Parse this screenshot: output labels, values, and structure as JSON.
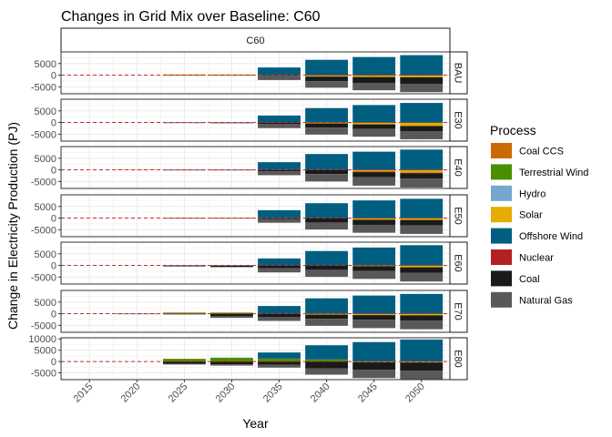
{
  "chart_data": {
    "type": "bar",
    "stacked": true,
    "faceted": true,
    "title": "Changes in Grid Mix over Baseline: C60",
    "xlabel": "Year",
    "ylabel": "Change in Electricity Production (PJ)",
    "column_strip": "C60",
    "legend_title": "Process",
    "legend_position": "right",
    "grid": true,
    "reference_line": {
      "y": 0,
      "color": "#cc2a2a",
      "style": "dashed"
    },
    "categories": [
      "2015",
      "2020",
      "2025",
      "2030",
      "2035",
      "2040",
      "2045",
      "2050"
    ],
    "processes": [
      {
        "name": "Coal CCS",
        "color": "#cc6a00"
      },
      {
        "name": "Terrestrial Wind",
        "color": "#4b8f00"
      },
      {
        "name": "Hydro",
        "color": "#76a7cf"
      },
      {
        "name": "Solar",
        "color": "#e6ac00"
      },
      {
        "name": "Offshore Wind",
        "color": "#005f80"
      },
      {
        "name": "Nuclear",
        "color": "#b22222"
      },
      {
        "name": "Coal",
        "color": "#1a1a1a"
      },
      {
        "name": "Natural Gas",
        "color": "#595959"
      }
    ],
    "panels": [
      {
        "name": "BAU",
        "ylim": [
          -8000,
          10000
        ],
        "yticks": [
          -5000,
          0,
          5000
        ],
        "series": [
          {
            "name": "Coal CCS",
            "values": [
              0,
              0,
              0,
              0,
              0,
              0,
              0,
              0
            ]
          },
          {
            "name": "Terrestrial Wind",
            "values": [
              0,
              0,
              0,
              0,
              0,
              -300,
              -300,
              -300
            ]
          },
          {
            "name": "Hydro",
            "values": [
              0,
              0,
              0,
              0,
              0,
              0,
              0,
              0
            ]
          },
          {
            "name": "Solar",
            "values": [
              0,
              0,
              350,
              350,
              0,
              -300,
              -500,
              -600
            ]
          },
          {
            "name": "Offshore Wind",
            "values": [
              0,
              0,
              0,
              0,
              3300,
              6600,
              7800,
              8600
            ]
          },
          {
            "name": "Nuclear",
            "values": [
              0,
              0,
              0,
              0,
              0,
              0,
              0,
              0
            ]
          },
          {
            "name": "Coal",
            "values": [
              0,
              0,
              0,
              0,
              -200,
              -2000,
              -2500,
              -2800
            ]
          },
          {
            "name": "Natural Gas",
            "values": [
              0,
              0,
              -100,
              -100,
              -1900,
              -2800,
              -3200,
              -3600
            ]
          }
        ]
      },
      {
        "name": "E30",
        "ylim": [
          -8000,
          10000
        ],
        "yticks": [
          -5000,
          0,
          5000
        ],
        "series": [
          {
            "name": "Coal CCS",
            "values": [
              0,
              0,
              0,
              0,
              0,
              0,
              0,
              0
            ]
          },
          {
            "name": "Terrestrial Wind",
            "values": [
              0,
              0,
              0,
              0,
              0,
              0,
              -200,
              -300
            ]
          },
          {
            "name": "Hydro",
            "values": [
              0,
              0,
              0,
              0,
              0,
              0,
              0,
              0
            ]
          },
          {
            "name": "Solar",
            "values": [
              0,
              0,
              0,
              0,
              0,
              -400,
              -600,
              -1200
            ]
          },
          {
            "name": "Offshore Wind",
            "values": [
              0,
              0,
              0,
              0,
              3000,
              6200,
              7500,
              8400
            ]
          },
          {
            "name": "Nuclear",
            "values": [
              0,
              0,
              0,
              0,
              0,
              0,
              0,
              0
            ]
          },
          {
            "name": "Coal",
            "values": [
              0,
              0,
              -200,
              -300,
              -700,
              -1800,
              -2000,
              -2200
            ]
          },
          {
            "name": "Natural Gas",
            "values": [
              0,
              0,
              0,
              0,
              -1700,
              -3000,
              -3300,
              -3500
            ]
          }
        ]
      },
      {
        "name": "E40",
        "ylim": [
          -8000,
          10000
        ],
        "yticks": [
          -5000,
          0,
          5000
        ],
        "series": [
          {
            "name": "Coal CCS",
            "values": [
              0,
              0,
              0,
              0,
              0,
              0,
              0,
              0
            ]
          },
          {
            "name": "Terrestrial Wind",
            "values": [
              0,
              0,
              0,
              0,
              0,
              0,
              -200,
              -300
            ]
          },
          {
            "name": "Hydro",
            "values": [
              0,
              0,
              0,
              0,
              0,
              0,
              0,
              0
            ]
          },
          {
            "name": "Solar",
            "values": [
              0,
              150,
              0,
              0,
              0,
              0,
              -500,
              -900
            ]
          },
          {
            "name": "Offshore Wind",
            "values": [
              0,
              0,
              0,
              0,
              3300,
              6800,
              7800,
              8700
            ]
          },
          {
            "name": "Nuclear",
            "values": [
              0,
              0,
              0,
              0,
              0,
              0,
              -300,
              -300
            ]
          },
          {
            "name": "Coal",
            "values": [
              0,
              0,
              -100,
              -150,
              -600,
              -1800,
              -2200,
              -2300
            ]
          },
          {
            "name": "Natural Gas",
            "values": [
              0,
              0,
              0,
              0,
              -1700,
              -3200,
              -3600,
              -3800
            ]
          }
        ]
      },
      {
        "name": "E50",
        "ylim": [
          -8000,
          10000
        ],
        "yticks": [
          -5000,
          0,
          5000
        ],
        "series": [
          {
            "name": "Coal CCS",
            "values": [
              0,
              0,
              0,
              0,
              0,
              0,
              0,
              0
            ]
          },
          {
            "name": "Terrestrial Wind",
            "values": [
              0,
              0,
              0,
              0,
              0,
              0,
              -200,
              -200
            ]
          },
          {
            "name": "Hydro",
            "values": [
              0,
              0,
              0,
              0,
              0,
              0,
              0,
              0
            ]
          },
          {
            "name": "Solar",
            "values": [
              0,
              0,
              200,
              200,
              0,
              0,
              -500,
              -600
            ]
          },
          {
            "name": "Offshore Wind",
            "values": [
              0,
              0,
              0,
              0,
              3400,
              6400,
              7600,
              8300
            ]
          },
          {
            "name": "Nuclear",
            "values": [
              0,
              0,
              0,
              0,
              0,
              0,
              0,
              0
            ]
          },
          {
            "name": "Coal",
            "values": [
              0,
              0,
              0,
              0,
              -500,
              -1900,
              -2200,
              -2400
            ]
          },
          {
            "name": "Natural Gas",
            "values": [
              0,
              0,
              -100,
              -100,
              -1500,
              -3000,
              -3400,
              -3600
            ]
          }
        ]
      },
      {
        "name": "E60",
        "ylim": [
          -8000,
          10000
        ],
        "yticks": [
          -5000,
          0,
          5000
        ],
        "series": [
          {
            "name": "Coal CCS",
            "values": [
              0,
              0,
              0,
              0,
              0,
              0,
              0,
              0
            ]
          },
          {
            "name": "Terrestrial Wind",
            "values": [
              0,
              0,
              0,
              0,
              0,
              0,
              0,
              -200
            ]
          },
          {
            "name": "Hydro",
            "values": [
              0,
              0,
              0,
              0,
              0,
              0,
              0,
              0
            ]
          },
          {
            "name": "Solar",
            "values": [
              0,
              0,
              0,
              0,
              0,
              0,
              -300,
              -600
            ]
          },
          {
            "name": "Offshore Wind",
            "values": [
              0,
              0,
              0,
              0,
              3000,
              6200,
              7700,
              8700
            ]
          },
          {
            "name": "Nuclear",
            "values": [
              0,
              0,
              0,
              0,
              0,
              0,
              0,
              0
            ]
          },
          {
            "name": "Coal",
            "values": [
              0,
              0,
              -400,
              -700,
              -1200,
              -1900,
              -2100,
              -2300
            ]
          },
          {
            "name": "Natural Gas",
            "values": [
              0,
              0,
              0,
              0,
              -1800,
              -3000,
              -3400,
              -3800
            ]
          }
        ]
      },
      {
        "name": "E70",
        "ylim": [
          -8000,
          10000
        ],
        "yticks": [
          -5000,
          0,
          5000
        ],
        "series": [
          {
            "name": "Coal CCS",
            "values": [
              0,
              0,
              300,
              300,
              0,
              0,
              0,
              0
            ]
          },
          {
            "name": "Terrestrial Wind",
            "values": [
              0,
              0,
              200,
              200,
              0,
              0,
              -200,
              -200
            ]
          },
          {
            "name": "Hydro",
            "values": [
              0,
              0,
              0,
              0,
              0,
              0,
              0,
              0
            ]
          },
          {
            "name": "Solar",
            "values": [
              0,
              0,
              0,
              0,
              0,
              -400,
              -400,
              -500
            ]
          },
          {
            "name": "Offshore Wind",
            "values": [
              0,
              0,
              0,
              0,
              3300,
              6600,
              7800,
              8500
            ]
          },
          {
            "name": "Nuclear",
            "values": [
              0,
              0,
              0,
              0,
              0,
              0,
              0,
              0
            ]
          },
          {
            "name": "Coal",
            "values": [
              0,
              0,
              -100,
              -1100,
              -1500,
              -1800,
              -2000,
              -2200
            ]
          },
          {
            "name": "Natural Gas",
            "values": [
              0,
              -100,
              -200,
              -700,
              -1600,
              -3000,
              -3600,
              -3800
            ]
          }
        ]
      },
      {
        "name": "E80",
        "ylim": [
          -8000,
          10500
        ],
        "yticks": [
          -5000,
          0,
          5000,
          10000
        ],
        "series": [
          {
            "name": "Coal CCS",
            "values": [
              0,
              0,
              0,
              0,
              0,
              0,
              0,
              0
            ]
          },
          {
            "name": "Terrestrial Wind",
            "values": [
              0,
              0,
              1200,
              1700,
              1300,
              900,
              0,
              0
            ]
          },
          {
            "name": "Hydro",
            "values": [
              0,
              0,
              0,
              0,
              0,
              0,
              0,
              0
            ]
          },
          {
            "name": "Solar",
            "values": [
              0,
              0,
              0,
              0,
              0,
              0,
              -300,
              -400
            ]
          },
          {
            "name": "Offshore Wind",
            "values": [
              0,
              0,
              0,
              0,
              2700,
              6300,
              8600,
              9700
            ]
          },
          {
            "name": "Nuclear",
            "values": [
              0,
              0,
              0,
              0,
              0,
              0,
              0,
              0
            ]
          },
          {
            "name": "Coal",
            "values": [
              0,
              0,
              -1000,
              -1200,
              -1400,
              -3000,
              -3400,
              -3700
            ]
          },
          {
            "name": "Natural Gas",
            "values": [
              0,
              0,
              -300,
              -600,
              -1300,
              -2800,
              -3600,
              -3900
            ]
          }
        ]
      }
    ]
  }
}
